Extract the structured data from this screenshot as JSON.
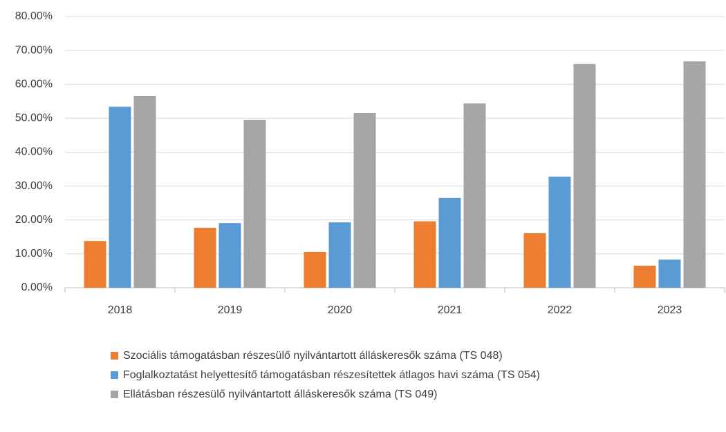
{
  "chart_data": {
    "type": "bar",
    "categories": [
      "2018",
      "2019",
      "2020",
      "2021",
      "2022",
      "2023"
    ],
    "series": [
      {
        "name": "Szociális támogatásban részesülő nyilvántartott álláskeresők száma (TS 048)",
        "color": "#ed7d31",
        "values": [
          13.8,
          17.7,
          10.6,
          19.6,
          16.1,
          6.5
        ]
      },
      {
        "name": "Foglalkoztatást helyettesítő támogatásban részesítettek átlagos havi száma (TS 054)",
        "color": "#5b9bd5",
        "values": [
          53.4,
          19.1,
          19.3,
          26.5,
          32.8,
          8.3
        ]
      },
      {
        "name": "Ellátásban részesülő nyilvántartott álláskeresők száma (TS 049)",
        "color": "#a5a5a5",
        "values": [
          56.6,
          49.5,
          51.5,
          54.4,
          66.0,
          66.8
        ]
      }
    ],
    "ylim": [
      0,
      80
    ],
    "yticks": [
      {
        "value": 0,
        "label": "0.00%"
      },
      {
        "value": 10,
        "label": "10.00%"
      },
      {
        "value": 20,
        "label": "20.00%"
      },
      {
        "value": 30,
        "label": "30.00%"
      },
      {
        "value": 40,
        "label": "40.00%"
      },
      {
        "value": 50,
        "label": "50.00%"
      },
      {
        "value": 60,
        "label": "60.00%"
      },
      {
        "value": 70,
        "label": "70.00%"
      },
      {
        "value": 80,
        "label": "80.00%"
      }
    ],
    "grid": true,
    "legend": "bottom"
  }
}
